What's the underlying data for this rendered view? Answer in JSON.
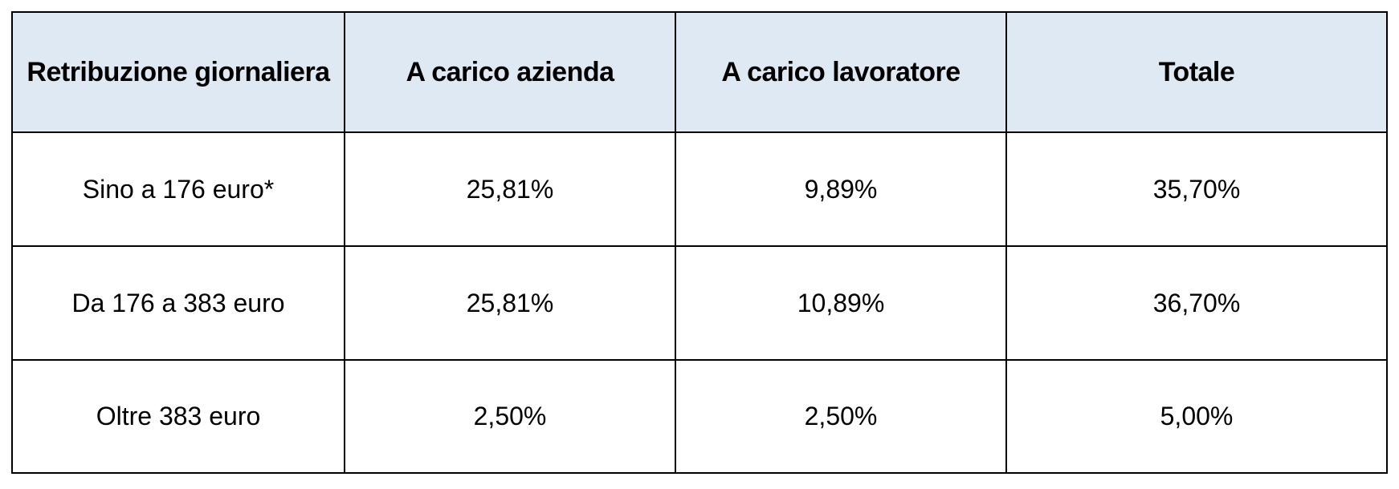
{
  "table": {
    "headers": [
      "Retribuzione giornaliera",
      "A carico azienda",
      "A carico lavoratore",
      "Totale"
    ],
    "rows": [
      [
        "Sino a 176 euro*",
        "25,81%",
        "9,89%",
        "35,70%"
      ],
      [
        "Da 176 a 383 euro",
        "25,81%",
        "10,89%",
        "36,70%"
      ],
      [
        "Oltre 383 euro",
        "2,50%",
        "2,50%",
        "5,00%"
      ]
    ],
    "header_background": "#dfe9f4",
    "border_color": "#000000"
  }
}
